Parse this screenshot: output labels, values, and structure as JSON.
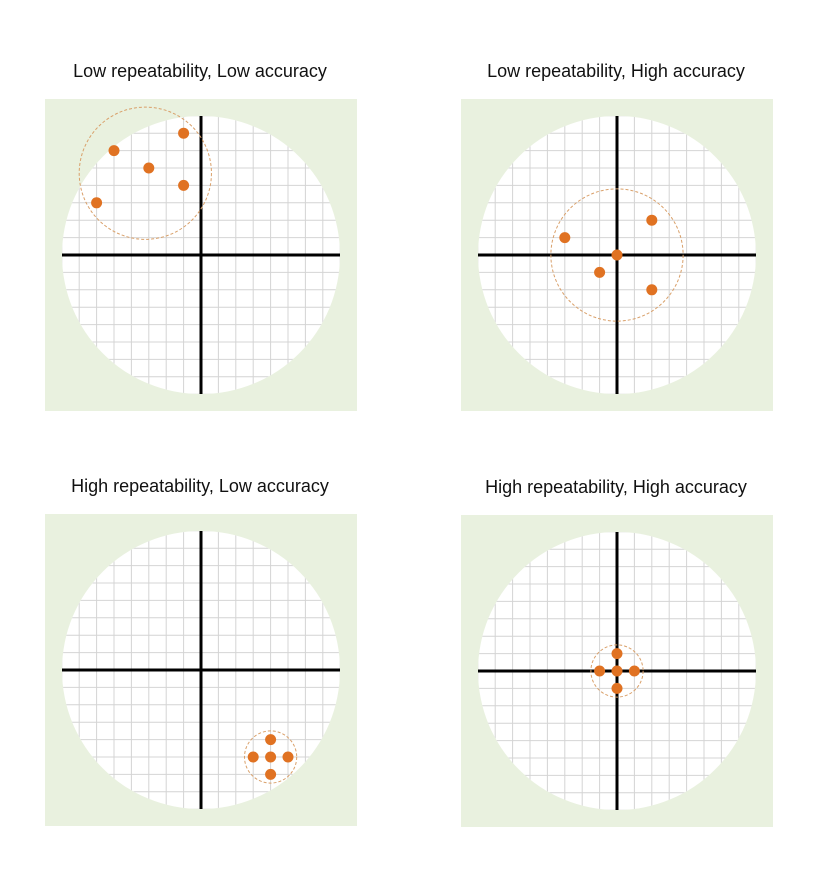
{
  "colors": {
    "field_background": "#e9f1df",
    "target_fill": "#ffffff",
    "grid_line": "#d4d4d4",
    "axis_line": "#000000",
    "shot": "#e07222",
    "spread_circle": "#d9a06a"
  },
  "panels": [
    {
      "title": "Low repeatability, Low accuracy",
      "shots": [
        [
          -1.0,
          7.0
        ],
        [
          -5.0,
          6.0
        ],
        [
          -3.0,
          5.0
        ],
        [
          -1.0,
          4.0
        ],
        [
          -6.0,
          3.0
        ]
      ],
      "spread": {
        "center": [
          -3.2,
          4.7
        ],
        "radius": 3.8
      }
    },
    {
      "title": "Low repeatability, High accuracy",
      "shots": [
        [
          2.0,
          2.0
        ],
        [
          -3.0,
          1.0
        ],
        [
          0.0,
          0.0
        ],
        [
          -1.0,
          -1.0
        ],
        [
          2.0,
          -2.0
        ]
      ],
      "spread": {
        "center": [
          0.0,
          0.0
        ],
        "radius": 3.8
      }
    },
    {
      "title": "High repeatability, Low accuracy",
      "shots": [
        [
          4.0,
          -4.0
        ],
        [
          3.0,
          -5.0
        ],
        [
          4.0,
          -5.0
        ],
        [
          5.0,
          -5.0
        ],
        [
          4.0,
          -6.0
        ]
      ],
      "spread": {
        "center": [
          4.0,
          -5.0
        ],
        "radius": 1.5
      }
    },
    {
      "title": "High repeatability, High accuracy",
      "shots": [
        [
          0.0,
          1.0
        ],
        [
          -1.0,
          0.0
        ],
        [
          0.0,
          0.0
        ],
        [
          1.0,
          0.0
        ],
        [
          0.0,
          -1.0
        ]
      ],
      "spread": {
        "center": [
          0.0,
          0.0
        ],
        "radius": 1.5
      }
    }
  ]
}
